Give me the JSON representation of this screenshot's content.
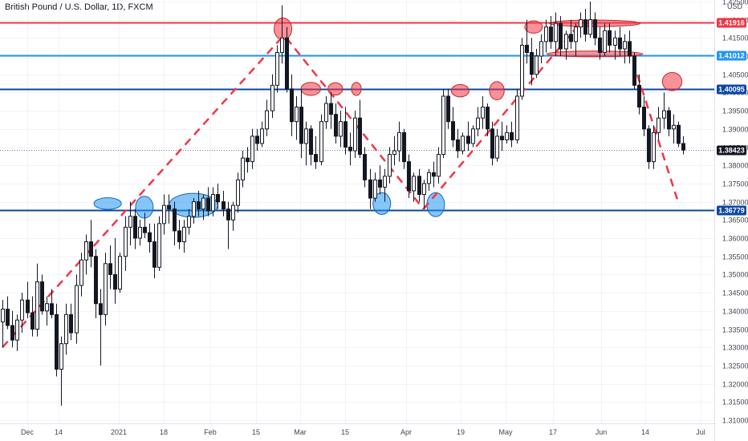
{
  "header": {
    "symbol_title": "British Pound / U.S. Dollar, 1D, FXCM"
  },
  "chart_data": {
    "type": "candlestick",
    "currency": "USD",
    "ylim": [
      1.305,
      1.43
    ],
    "y_ticks": [
      1.31,
      1.315,
      1.32,
      1.325,
      1.33,
      1.335,
      1.34,
      1.345,
      1.35,
      1.355,
      1.36,
      1.365,
      1.37,
      1.375,
      1.38,
      1.385,
      1.39,
      1.395,
      1.4,
      1.405,
      1.41,
      1.415,
      1.42,
      1.425
    ],
    "x_ticks": [
      "Dec",
      "14",
      "2021",
      "18",
      "Feb",
      "15",
      "Mar",
      "15",
      "Apr",
      "19",
      "May",
      "17",
      "Jun",
      "14",
      "Jul"
    ],
    "current_price": 1.38423,
    "levels": [
      {
        "value": 1.41916,
        "label": "1.41916",
        "color": "#f23645"
      },
      {
        "value": 1.41012,
        "label": "1.41012",
        "color": "#2196f3"
      },
      {
        "value": 1.40095,
        "label": "1.40095",
        "color": "#0d47a1"
      },
      {
        "value": 1.36779,
        "label": "1.36779",
        "color": "#0d47a1"
      }
    ],
    "candles": [
      {
        "o": 1.337,
        "h": 1.343,
        "l": 1.33,
        "c": 1.3405
      },
      {
        "o": 1.3405,
        "h": 1.344,
        "l": 1.335,
        "c": 1.336
      },
      {
        "o": 1.336,
        "h": 1.34,
        "l": 1.33,
        "c": 1.332
      },
      {
        "o": 1.332,
        "h": 1.339,
        "l": 1.329,
        "c": 1.3375
      },
      {
        "o": 1.3375,
        "h": 1.345,
        "l": 1.334,
        "c": 1.343
      },
      {
        "o": 1.343,
        "h": 1.348,
        "l": 1.338,
        "c": 1.3395
      },
      {
        "o": 1.3395,
        "h": 1.344,
        "l": 1.333,
        "c": 1.335
      },
      {
        "o": 1.335,
        "h": 1.353,
        "l": 1.333,
        "c": 1.348
      },
      {
        "o": 1.348,
        "h": 1.35,
        "l": 1.339,
        "c": 1.34
      },
      {
        "o": 1.34,
        "h": 1.344,
        "l": 1.336,
        "c": 1.342
      },
      {
        "o": 1.342,
        "h": 1.346,
        "l": 1.338,
        "c": 1.339
      },
      {
        "o": 1.339,
        "h": 1.342,
        "l": 1.322,
        "c": 1.324
      },
      {
        "o": 1.324,
        "h": 1.333,
        "l": 1.314,
        "c": 1.331
      },
      {
        "o": 1.331,
        "h": 1.342,
        "l": 1.328,
        "c": 1.339
      },
      {
        "o": 1.339,
        "h": 1.342,
        "l": 1.332,
        "c": 1.334
      },
      {
        "o": 1.334,
        "h": 1.35,
        "l": 1.331,
        "c": 1.347
      },
      {
        "o": 1.347,
        "h": 1.356,
        "l": 1.344,
        "c": 1.354
      },
      {
        "o": 1.354,
        "h": 1.361,
        "l": 1.35,
        "c": 1.359
      },
      {
        "o": 1.359,
        "h": 1.365,
        "l": 1.352,
        "c": 1.355
      },
      {
        "o": 1.355,
        "h": 1.357,
        "l": 1.338,
        "c": 1.342
      },
      {
        "o": 1.342,
        "h": 1.346,
        "l": 1.325,
        "c": 1.339
      },
      {
        "o": 1.339,
        "h": 1.356,
        "l": 1.336,
        "c": 1.353
      },
      {
        "o": 1.353,
        "h": 1.358,
        "l": 1.346,
        "c": 1.35
      },
      {
        "o": 1.35,
        "h": 1.36,
        "l": 1.342,
        "c": 1.346
      },
      {
        "o": 1.346,
        "h": 1.356,
        "l": 1.345,
        "c": 1.355
      },
      {
        "o": 1.355,
        "h": 1.366,
        "l": 1.351,
        "c": 1.363
      },
      {
        "o": 1.363,
        "h": 1.37,
        "l": 1.358,
        "c": 1.366
      },
      {
        "o": 1.366,
        "h": 1.368,
        "l": 1.357,
        "c": 1.36
      },
      {
        "o": 1.36,
        "h": 1.365,
        "l": 1.358,
        "c": 1.363
      },
      {
        "o": 1.363,
        "h": 1.367,
        "l": 1.36,
        "c": 1.3615
      },
      {
        "o": 1.3615,
        "h": 1.364,
        "l": 1.356,
        "c": 1.359
      },
      {
        "o": 1.359,
        "h": 1.364,
        "l": 1.349,
        "c": 1.352
      },
      {
        "o": 1.352,
        "h": 1.366,
        "l": 1.351,
        "c": 1.364
      },
      {
        "o": 1.364,
        "h": 1.372,
        "l": 1.361,
        "c": 1.369
      },
      {
        "o": 1.369,
        "h": 1.372,
        "l": 1.364,
        "c": 1.368
      },
      {
        "o": 1.368,
        "h": 1.37,
        "l": 1.358,
        "c": 1.362
      },
      {
        "o": 1.362,
        "h": 1.365,
        "l": 1.357,
        "c": 1.359
      },
      {
        "o": 1.359,
        "h": 1.365,
        "l": 1.356,
        "c": 1.363
      },
      {
        "o": 1.363,
        "h": 1.368,
        "l": 1.361,
        "c": 1.366
      },
      {
        "o": 1.366,
        "h": 1.371,
        "l": 1.364,
        "c": 1.37
      },
      {
        "o": 1.37,
        "h": 1.373,
        "l": 1.366,
        "c": 1.368
      },
      {
        "o": 1.368,
        "h": 1.372,
        "l": 1.365,
        "c": 1.371
      },
      {
        "o": 1.371,
        "h": 1.374,
        "l": 1.366,
        "c": 1.3675
      },
      {
        "o": 1.3675,
        "h": 1.374,
        "l": 1.366,
        "c": 1.372
      },
      {
        "o": 1.372,
        "h": 1.375,
        "l": 1.368,
        "c": 1.37
      },
      {
        "o": 1.37,
        "h": 1.373,
        "l": 1.366,
        "c": 1.368
      },
      {
        "o": 1.368,
        "h": 1.37,
        "l": 1.357,
        "c": 1.365
      },
      {
        "o": 1.365,
        "h": 1.37,
        "l": 1.362,
        "c": 1.369
      },
      {
        "o": 1.369,
        "h": 1.378,
        "l": 1.367,
        "c": 1.376
      },
      {
        "o": 1.376,
        "h": 1.384,
        "l": 1.374,
        "c": 1.382
      },
      {
        "o": 1.382,
        "h": 1.385,
        "l": 1.378,
        "c": 1.381
      },
      {
        "o": 1.381,
        "h": 1.39,
        "l": 1.379,
        "c": 1.388
      },
      {
        "o": 1.388,
        "h": 1.39,
        "l": 1.384,
        "c": 1.386
      },
      {
        "o": 1.386,
        "h": 1.392,
        "l": 1.385,
        "c": 1.39
      },
      {
        "o": 1.39,
        "h": 1.398,
        "l": 1.388,
        "c": 1.395
      },
      {
        "o": 1.395,
        "h": 1.405,
        "l": 1.393,
        "c": 1.402
      },
      {
        "o": 1.402,
        "h": 1.413,
        "l": 1.4,
        "c": 1.411
      },
      {
        "o": 1.411,
        "h": 1.424,
        "l": 1.408,
        "c": 1.415
      },
      {
        "o": 1.415,
        "h": 1.418,
        "l": 1.4,
        "c": 1.401
      },
      {
        "o": 1.401,
        "h": 1.405,
        "l": 1.388,
        "c": 1.392
      },
      {
        "o": 1.392,
        "h": 1.399,
        "l": 1.387,
        "c": 1.396
      },
      {
        "o": 1.396,
        "h": 1.401,
        "l": 1.382,
        "c": 1.386
      },
      {
        "o": 1.386,
        "h": 1.392,
        "l": 1.38,
        "c": 1.39
      },
      {
        "o": 1.39,
        "h": 1.391,
        "l": 1.38,
        "c": 1.383
      },
      {
        "o": 1.383,
        "h": 1.388,
        "l": 1.379,
        "c": 1.381
      },
      {
        "o": 1.381,
        "h": 1.394,
        "l": 1.38,
        "c": 1.392
      },
      {
        "o": 1.392,
        "h": 1.399,
        "l": 1.39,
        "c": 1.397
      },
      {
        "o": 1.397,
        "h": 1.4,
        "l": 1.39,
        "c": 1.394
      },
      {
        "o": 1.394,
        "h": 1.397,
        "l": 1.386,
        "c": 1.388
      },
      {
        "o": 1.388,
        "h": 1.395,
        "l": 1.385,
        "c": 1.392
      },
      {
        "o": 1.392,
        "h": 1.396,
        "l": 1.383,
        "c": 1.385
      },
      {
        "o": 1.385,
        "h": 1.389,
        "l": 1.38,
        "c": 1.384
      },
      {
        "o": 1.384,
        "h": 1.395,
        "l": 1.382,
        "c": 1.393
      },
      {
        "o": 1.393,
        "h": 1.398,
        "l": 1.382,
        "c": 1.383
      },
      {
        "o": 1.383,
        "h": 1.385,
        "l": 1.374,
        "c": 1.376
      },
      {
        "o": 1.376,
        "h": 1.379,
        "l": 1.368,
        "c": 1.371
      },
      {
        "o": 1.371,
        "h": 1.378,
        "l": 1.37,
        "c": 1.376
      },
      {
        "o": 1.376,
        "h": 1.38,
        "l": 1.372,
        "c": 1.374
      },
      {
        "o": 1.374,
        "h": 1.379,
        "l": 1.37,
        "c": 1.377
      },
      {
        "o": 1.377,
        "h": 1.385,
        "l": 1.375,
        "c": 1.383
      },
      {
        "o": 1.383,
        "h": 1.388,
        "l": 1.38,
        "c": 1.384
      },
      {
        "o": 1.384,
        "h": 1.392,
        "l": 1.381,
        "c": 1.389
      },
      {
        "o": 1.389,
        "h": 1.39,
        "l": 1.379,
        "c": 1.381
      },
      {
        "o": 1.381,
        "h": 1.383,
        "l": 1.371,
        "c": 1.373
      },
      {
        "o": 1.373,
        "h": 1.378,
        "l": 1.37,
        "c": 1.377
      },
      {
        "o": 1.377,
        "h": 1.379,
        "l": 1.37,
        "c": 1.372
      },
      {
        "o": 1.372,
        "h": 1.376,
        "l": 1.368,
        "c": 1.375
      },
      {
        "o": 1.375,
        "h": 1.379,
        "l": 1.373,
        "c": 1.378
      },
      {
        "o": 1.378,
        "h": 1.381,
        "l": 1.374,
        "c": 1.377
      },
      {
        "o": 1.377,
        "h": 1.385,
        "l": 1.375,
        "c": 1.383
      },
      {
        "o": 1.383,
        "h": 1.401,
        "l": 1.382,
        "c": 1.399
      },
      {
        "o": 1.399,
        "h": 1.401,
        "l": 1.39,
        "c": 1.392
      },
      {
        "o": 1.392,
        "h": 1.396,
        "l": 1.385,
        "c": 1.387
      },
      {
        "o": 1.387,
        "h": 1.39,
        "l": 1.382,
        "c": 1.384
      },
      {
        "o": 1.384,
        "h": 1.389,
        "l": 1.383,
        "c": 1.388
      },
      {
        "o": 1.388,
        "h": 1.392,
        "l": 1.384,
        "c": 1.386
      },
      {
        "o": 1.386,
        "h": 1.391,
        "l": 1.385,
        "c": 1.39
      },
      {
        "o": 1.39,
        "h": 1.396,
        "l": 1.388,
        "c": 1.393
      },
      {
        "o": 1.393,
        "h": 1.399,
        "l": 1.39,
        "c": 1.396
      },
      {
        "o": 1.396,
        "h": 1.397,
        "l": 1.388,
        "c": 1.39
      },
      {
        "o": 1.39,
        "h": 1.392,
        "l": 1.38,
        "c": 1.382
      },
      {
        "o": 1.382,
        "h": 1.39,
        "l": 1.381,
        "c": 1.388
      },
      {
        "o": 1.388,
        "h": 1.392,
        "l": 1.384,
        "c": 1.387
      },
      {
        "o": 1.387,
        "h": 1.391,
        "l": 1.386,
        "c": 1.389
      },
      {
        "o": 1.389,
        "h": 1.392,
        "l": 1.385,
        "c": 1.387
      },
      {
        "o": 1.387,
        "h": 1.401,
        "l": 1.386,
        "c": 1.399
      },
      {
        "o": 1.399,
        "h": 1.415,
        "l": 1.398,
        "c": 1.413
      },
      {
        "o": 1.413,
        "h": 1.42,
        "l": 1.408,
        "c": 1.411
      },
      {
        "o": 1.411,
        "h": 1.415,
        "l": 1.402,
        "c": 1.405
      },
      {
        "o": 1.405,
        "h": 1.412,
        "l": 1.404,
        "c": 1.41
      },
      {
        "o": 1.41,
        "h": 1.416,
        "l": 1.408,
        "c": 1.414
      },
      {
        "o": 1.414,
        "h": 1.42,
        "l": 1.411,
        "c": 1.418
      },
      {
        "o": 1.418,
        "h": 1.421,
        "l": 1.412,
        "c": 1.414
      },
      {
        "o": 1.414,
        "h": 1.422,
        "l": 1.41,
        "c": 1.419
      },
      {
        "o": 1.419,
        "h": 1.421,
        "l": 1.41,
        "c": 1.412
      },
      {
        "o": 1.412,
        "h": 1.417,
        "l": 1.409,
        "c": 1.416
      },
      {
        "o": 1.416,
        "h": 1.42,
        "l": 1.412,
        "c": 1.414
      },
      {
        "o": 1.414,
        "h": 1.419,
        "l": 1.41,
        "c": 1.418
      },
      {
        "o": 1.418,
        "h": 1.422,
        "l": 1.415,
        "c": 1.42
      },
      {
        "o": 1.42,
        "h": 1.423,
        "l": 1.414,
        "c": 1.416
      },
      {
        "o": 1.416,
        "h": 1.425,
        "l": 1.415,
        "c": 1.42
      },
      {
        "o": 1.42,
        "h": 1.422,
        "l": 1.413,
        "c": 1.415
      },
      {
        "o": 1.415,
        "h": 1.418,
        "l": 1.409,
        "c": 1.411
      },
      {
        "o": 1.411,
        "h": 1.419,
        "l": 1.41,
        "c": 1.417
      },
      {
        "o": 1.417,
        "h": 1.419,
        "l": 1.411,
        "c": 1.413
      },
      {
        "o": 1.413,
        "h": 1.417,
        "l": 1.409,
        "c": 1.415
      },
      {
        "o": 1.415,
        "h": 1.418,
        "l": 1.41,
        "c": 1.412
      },
      {
        "o": 1.412,
        "h": 1.416,
        "l": 1.408,
        "c": 1.414
      },
      {
        "o": 1.414,
        "h": 1.417,
        "l": 1.408,
        "c": 1.41
      },
      {
        "o": 1.41,
        "h": 1.411,
        "l": 1.401,
        "c": 1.402
      },
      {
        "o": 1.402,
        "h": 1.405,
        "l": 1.394,
        "c": 1.396
      },
      {
        "o": 1.396,
        "h": 1.399,
        "l": 1.388,
        "c": 1.39
      },
      {
        "o": 1.39,
        "h": 1.391,
        "l": 1.379,
        "c": 1.381
      },
      {
        "o": 1.381,
        "h": 1.391,
        "l": 1.379,
        "c": 1.389
      },
      {
        "o": 1.389,
        "h": 1.396,
        "l": 1.387,
        "c": 1.393
      },
      {
        "o": 1.393,
        "h": 1.4,
        "l": 1.39,
        "c": 1.395
      },
      {
        "o": 1.395,
        "h": 1.396,
        "l": 1.388,
        "c": 1.39
      },
      {
        "o": 1.39,
        "h": 1.394,
        "l": 1.386,
        "c": 1.391
      },
      {
        "o": 1.391,
        "h": 1.392,
        "l": 1.385,
        "c": 1.386
      },
      {
        "o": 1.386,
        "h": 1.388,
        "l": 1.383,
        "c": 1.3842
      }
    ],
    "trend_lines": [
      {
        "from": [
          0,
          1.33
        ],
        "to": [
          57,
          1.415
        ],
        "color": "#f23645"
      },
      {
        "from": [
          58,
          1.415
        ],
        "to": [
          86,
          1.368
        ],
        "color": "#f23645"
      },
      {
        "from": [
          86,
          1.368
        ],
        "to": [
          118,
          1.419
        ],
        "color": "#f23645"
      },
      {
        "from": [
          128,
          1.412
        ],
        "to": [
          138,
          1.37
        ],
        "color": "#f23645"
      }
    ],
    "highlights": [
      {
        "cx": 21.5,
        "cy": 1.3695,
        "rx": 2.8,
        "ry": 0.0016,
        "color": "blue"
      },
      {
        "cx": 29,
        "cy": 1.3685,
        "rx": 1.8,
        "ry": 0.003,
        "color": "blue"
      },
      {
        "cx": 39,
        "cy": 1.369,
        "rx": 5,
        "ry": 0.0033,
        "color": "blue"
      },
      {
        "cx": 77.5,
        "cy": 1.3695,
        "rx": 1.8,
        "ry": 0.003,
        "color": "blue"
      },
      {
        "cx": 88.5,
        "cy": 1.3692,
        "rx": 1.8,
        "ry": 0.0033,
        "color": "blue"
      },
      {
        "cx": 57.3,
        "cy": 1.4175,
        "rx": 1.8,
        "ry": 0.003,
        "color": "red"
      },
      {
        "cx": 63,
        "cy": 1.401,
        "rx": 2,
        "ry": 0.0018,
        "color": "red"
      },
      {
        "cx": 68,
        "cy": 1.401,
        "rx": 1.5,
        "ry": 0.0017,
        "color": "red"
      },
      {
        "cx": 72.3,
        "cy": 1.401,
        "rx": 1,
        "ry": 0.0018,
        "color": "red"
      },
      {
        "cx": 93.5,
        "cy": 1.4005,
        "rx": 1.8,
        "ry": 0.0017,
        "color": "red"
      },
      {
        "cx": 101,
        "cy": 1.4005,
        "rx": 1.5,
        "ry": 0.0025,
        "color": "red"
      },
      {
        "cx": 108.5,
        "cy": 1.418,
        "rx": 1.8,
        "ry": 0.0017,
        "color": "red"
      },
      {
        "cx": 121,
        "cy": 1.419,
        "rx": 9.3,
        "ry": 0.0009,
        "color": "red"
      },
      {
        "cx": 121,
        "cy": 1.4106,
        "rx": 9.8,
        "ry": 0.0008,
        "color": "red"
      },
      {
        "cx": 136.8,
        "cy": 1.403,
        "rx": 2,
        "ry": 0.0025,
        "color": "red"
      }
    ]
  }
}
